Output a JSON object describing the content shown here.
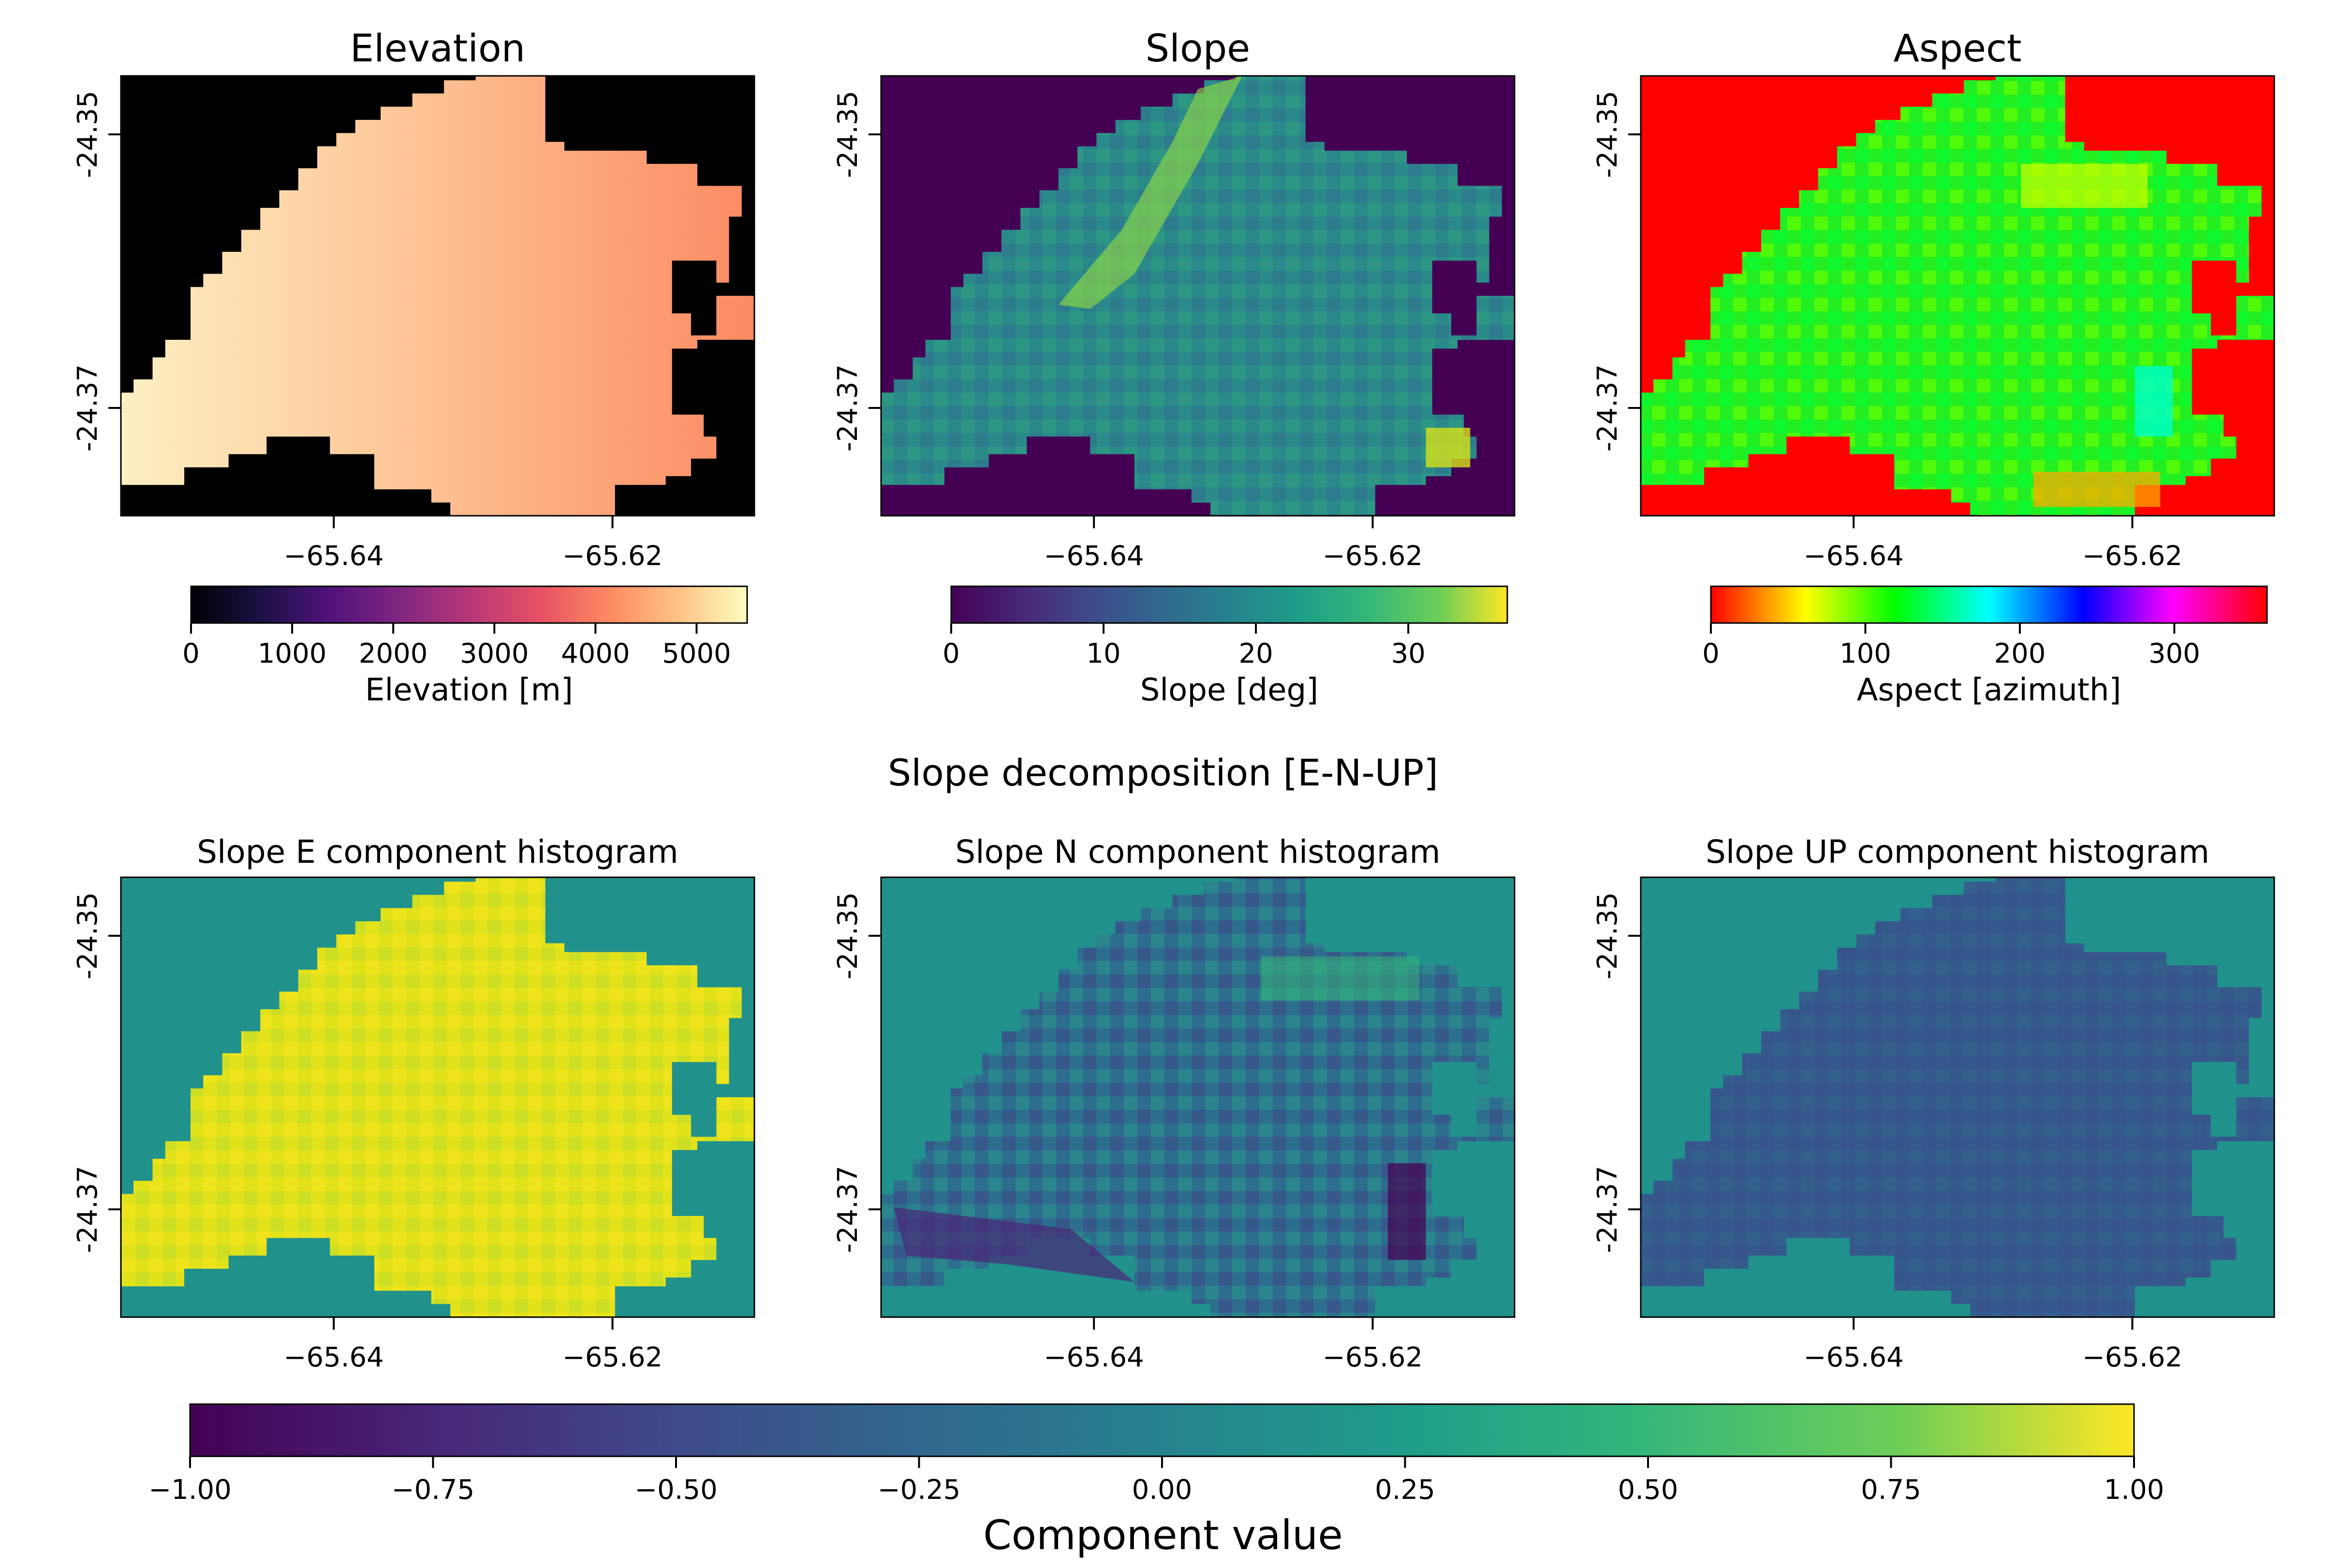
{
  "chart_data": [
    {
      "type": "heatmap",
      "title": "Elevation",
      "colormap": "magma",
      "background": "#000000",
      "gradient": "east-west",
      "xticks": [
        "−65.64",
        "−65.62"
      ],
      "yticks": [
        "-24.35",
        "-24.37"
      ],
      "colorbar": {
        "label": "Elevation [m]",
        "range": [
          0,
          5500
        ],
        "ticks": [
          "0",
          "1000",
          "2000",
          "3000",
          "4000",
          "5000"
        ]
      }
    },
    {
      "type": "heatmap",
      "title": "Slope",
      "colormap": "viridis",
      "background": "#440154",
      "xticks": [
        "−65.64",
        "−65.62"
      ],
      "yticks": [
        "-24.35",
        "-24.37"
      ],
      "colorbar": {
        "label": "Slope [deg]",
        "range": [
          0,
          36.5
        ],
        "ticks": [
          "0",
          "10",
          "20",
          "30"
        ]
      }
    },
    {
      "type": "heatmap",
      "title": "Aspect",
      "colormap": "hsv",
      "background": "#ff0000",
      "xticks": [
        "−65.64",
        "−65.62"
      ],
      "yticks": [
        "-24.35",
        "-24.37"
      ],
      "colorbar": {
        "label": "Aspect [azimuth]",
        "range": [
          0,
          360
        ],
        "ticks": [
          "0",
          "100",
          "200",
          "300"
        ]
      }
    },
    {
      "type": "heatmap",
      "title": "Slope E component histogram",
      "colormap": "viridis",
      "background": "#21918c",
      "xticks": [
        "−65.64",
        "−65.62"
      ],
      "yticks": [
        "-24.35",
        "-24.37"
      ]
    },
    {
      "type": "heatmap",
      "title": "Slope N component histogram",
      "colormap": "viridis",
      "background": "#21918c",
      "xticks": [
        "−65.64",
        "−65.62"
      ],
      "yticks": [
        "-24.35",
        "-24.37"
      ]
    },
    {
      "type": "heatmap",
      "title": "Slope UP component histogram",
      "colormap": "viridis",
      "background": "#21918c",
      "xticks": [
        "−65.64",
        "−65.62"
      ],
      "yticks": [
        "-24.35",
        "-24.37"
      ]
    }
  ],
  "suptitle": "Slope decomposition [E-N-UP]",
  "shared_colorbar": {
    "label": "Component value",
    "range": [
      -1.0,
      1.0
    ],
    "ticks": [
      "−1.00",
      "−0.75",
      "−0.50",
      "−0.25",
      "0.00",
      "0.25",
      "0.50",
      "0.75",
      "1.00"
    ]
  }
}
